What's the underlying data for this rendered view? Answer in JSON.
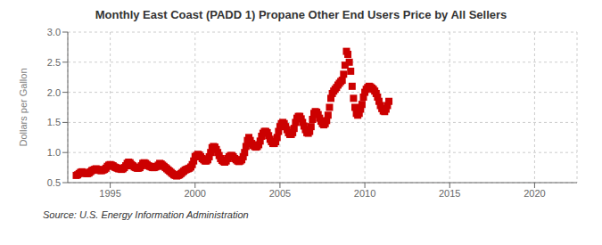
{
  "chart_data": {
    "type": "scatter",
    "title": "Monthly East Coast (PADD 1) Propane Other End Users Price by All Sellers",
    "ylabel": "Dollars per Gallon",
    "annotations": [
      "Source: U.S. Energy Information Administration"
    ],
    "color": "#CC0000",
    "marker": "square",
    "grid": true,
    "xlim": [
      1992.5,
      2022.5
    ],
    "ylim": [
      0.5,
      3.0
    ],
    "xticks": [
      1995,
      2000,
      2005,
      2010,
      2015,
      2020
    ],
    "yticks": [
      0.5,
      {
        "value": 1.0,
        "label": "1.0"
      },
      1.5,
      {
        "value": 2.0,
        "label": "2.0"
      },
      2.5,
      {
        "value": 3.0,
        "label": "3.0"
      }
    ],
    "x": [
      1993.0,
      1993.083,
      1993.167,
      1993.25,
      1993.333,
      1993.417,
      1993.5,
      1993.583,
      1993.667,
      1993.75,
      1993.833,
      1993.917,
      1994.0,
      1994.083,
      1994.167,
      1994.25,
      1994.333,
      1994.417,
      1994.5,
      1994.583,
      1994.667,
      1994.75,
      1994.833,
      1994.917,
      1995.0,
      1995.083,
      1995.167,
      1995.25,
      1995.333,
      1995.417,
      1995.5,
      1995.583,
      1995.667,
      1995.75,
      1995.833,
      1995.917,
      1996.0,
      1996.083,
      1996.167,
      1996.25,
      1996.333,
      1996.417,
      1996.5,
      1996.583,
      1996.667,
      1996.75,
      1996.833,
      1996.917,
      1997.0,
      1997.083,
      1997.167,
      1997.25,
      1997.333,
      1997.417,
      1997.5,
      1997.583,
      1997.667,
      1997.75,
      1997.833,
      1997.917,
      1998.0,
      1998.083,
      1998.167,
      1998.25,
      1998.333,
      1998.417,
      1998.5,
      1998.583,
      1998.667,
      1998.75,
      1998.833,
      1998.917,
      1999.0,
      1999.083,
      1999.167,
      1999.25,
      1999.333,
      1999.417,
      1999.5,
      1999.583,
      1999.667,
      1999.75,
      1999.833,
      1999.917,
      2000.0,
      2000.083,
      2000.167,
      2000.25,
      2000.333,
      2000.417,
      2000.5,
      2000.583,
      2000.667,
      2000.75,
      2000.833,
      2000.917,
      2001.0,
      2001.083,
      2001.167,
      2001.25,
      2001.333,
      2001.417,
      2001.5,
      2001.583,
      2001.667,
      2001.75,
      2001.833,
      2001.917,
      2002.0,
      2002.083,
      2002.167,
      2002.25,
      2002.333,
      2002.417,
      2002.5,
      2002.583,
      2002.667,
      2002.75,
      2002.833,
      2002.917,
      2003.0,
      2003.083,
      2003.167,
      2003.25,
      2003.333,
      2003.417,
      2003.5,
      2003.583,
      2003.667,
      2003.75,
      2003.833,
      2003.917,
      2004.0,
      2004.083,
      2004.167,
      2004.25,
      2004.333,
      2004.417,
      2004.5,
      2004.583,
      2004.667,
      2004.75,
      2004.833,
      2004.917,
      2005.0,
      2005.083,
      2005.167,
      2005.25,
      2005.333,
      2005.417,
      2005.5,
      2005.583,
      2005.667,
      2005.75,
      2005.833,
      2005.917,
      2006.0,
      2006.083,
      2006.167,
      2006.25,
      2006.333,
      2006.417,
      2006.5,
      2006.583,
      2006.667,
      2006.75,
      2006.833,
      2006.917,
      2007.0,
      2007.083,
      2007.167,
      2007.25,
      2007.333,
      2007.417,
      2007.5,
      2007.583,
      2007.667,
      2007.75,
      2007.833,
      2007.917,
      2008.0,
      2008.083,
      2008.167,
      2008.25,
      2008.333,
      2008.417,
      2008.5,
      2008.583,
      2008.667,
      2008.75,
      2008.833,
      2008.917,
      2009.0,
      2009.083,
      2009.167,
      2009.25,
      2009.333,
      2009.417,
      2009.5,
      2009.583,
      2009.667,
      2009.75,
      2009.833,
      2009.917,
      2010.0,
      2010.083,
      2010.167,
      2010.25,
      2010.333,
      2010.417,
      2010.5,
      2010.583,
      2010.667,
      2010.75,
      2010.833,
      2010.917,
      2011.0,
      2011.083,
      2011.167,
      2011.25,
      2011.333,
      2011.417
    ],
    "values": [
      0.62,
      0.63,
      0.65,
      0.67,
      0.68,
      0.67,
      0.66,
      0.65,
      0.65,
      0.66,
      0.68,
      0.7,
      0.71,
      0.72,
      0.73,
      0.72,
      0.71,
      0.7,
      0.7,
      0.71,
      0.72,
      0.74,
      0.77,
      0.79,
      0.8,
      0.79,
      0.78,
      0.76,
      0.75,
      0.74,
      0.73,
      0.73,
      0.72,
      0.73,
      0.75,
      0.78,
      0.82,
      0.84,
      0.83,
      0.8,
      0.78,
      0.76,
      0.75,
      0.74,
      0.74,
      0.75,
      0.78,
      0.82,
      0.83,
      0.82,
      0.8,
      0.78,
      0.77,
      0.76,
      0.75,
      0.75,
      0.76,
      0.77,
      0.79,
      0.82,
      0.81,
      0.79,
      0.77,
      0.75,
      0.73,
      0.71,
      0.69,
      0.67,
      0.65,
      0.63,
      0.62,
      0.61,
      0.62,
      0.63,
      0.65,
      0.67,
      0.69,
      0.71,
      0.72,
      0.73,
      0.74,
      0.76,
      0.8,
      0.86,
      0.93,
      0.95,
      0.97,
      0.96,
      0.93,
      0.9,
      0.88,
      0.86,
      0.86,
      0.88,
      0.93,
      1.0,
      1.08,
      1.1,
      1.09,
      1.05,
      1.0,
      0.95,
      0.9,
      0.87,
      0.85,
      0.84,
      0.86,
      0.9,
      0.93,
      0.95,
      0.95,
      0.93,
      0.9,
      0.88,
      0.86,
      0.85,
      0.86,
      0.88,
      0.93,
      1.0,
      1.1,
      1.2,
      1.25,
      1.2,
      1.15,
      1.12,
      1.1,
      1.09,
      1.1,
      1.13,
      1.19,
      1.27,
      1.32,
      1.35,
      1.35,
      1.33,
      1.28,
      1.22,
      1.18,
      1.15,
      1.15,
      1.18,
      1.25,
      1.35,
      1.43,
      1.48,
      1.5,
      1.48,
      1.43,
      1.38,
      1.33,
      1.3,
      1.3,
      1.33,
      1.4,
      1.5,
      1.57,
      1.6,
      1.6,
      1.56,
      1.5,
      1.44,
      1.38,
      1.33,
      1.32,
      1.35,
      1.43,
      1.55,
      1.65,
      1.68,
      1.67,
      1.63,
      1.57,
      1.52,
      1.48,
      1.46,
      1.48,
      1.53,
      1.62,
      1.75,
      1.9,
      1.98,
      2.02,
      2.05,
      2.08,
      2.12,
      2.15,
      2.18,
      2.2,
      2.3,
      2.45,
      2.68,
      2.63,
      2.5,
      2.35,
      2.1,
      1.9,
      1.75,
      1.65,
      1.62,
      1.65,
      1.72,
      1.8,
      1.92,
      2.0,
      2.05,
      2.08,
      2.1,
      2.09,
      2.07,
      2.05,
      2.02,
      1.98,
      1.92,
      1.85,
      1.78,
      1.73,
      1.69,
      1.68,
      1.72,
      1.78,
      1.85
    ]
  }
}
